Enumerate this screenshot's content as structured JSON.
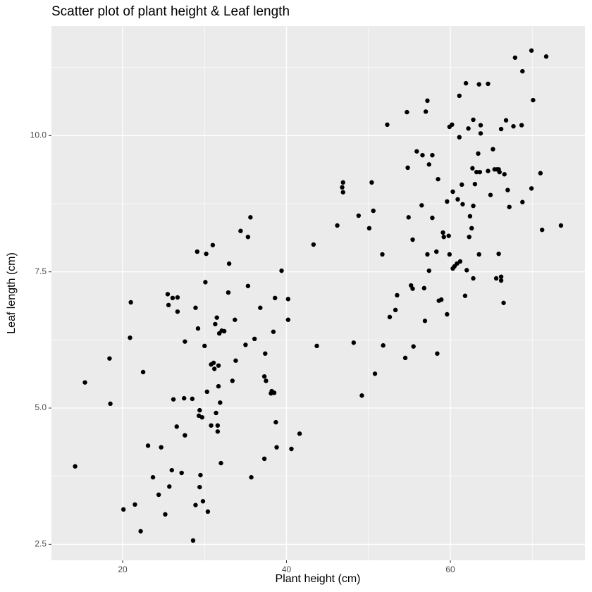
{
  "chart_data": {
    "type": "scatter",
    "title": "Scatter plot of plant height & Leaf length",
    "x_label": "Plant height (cm)",
    "y_label": "Leaf length (cm)",
    "xlim": [
      11.31,
      76.43
    ],
    "ylim": [
      2.207,
      12.009
    ],
    "xticks": [
      20,
      40,
      60
    ],
    "yticks": [
      2.5,
      {
        "value": 5,
        "label": "5.0"
      },
      7.5,
      {
        "value": 10,
        "label": "10.0"
      }
    ],
    "x_minor_grid": [
      10,
      30,
      50,
      70
    ],
    "y_minor_grid": [
      3.75,
      6.25,
      8.75,
      11.25
    ],
    "grid": true,
    "panel_color": "#ebebeb",
    "grid_color": "#ffffff",
    "color": "#000000",
    "x": [
      14.2,
      15.4,
      18.4,
      18.5,
      20.1,
      20.9,
      21.0,
      21.5,
      22.2,
      22.5,
      23.1,
      23.7,
      24.4,
      24.7,
      25.2,
      25.5,
      25.6,
      25.7,
      26.0,
      26.1,
      26.2,
      26.6,
      26.7,
      26.7,
      27.2,
      27.5,
      27.6,
      27.6,
      28.5,
      28.6,
      28.9,
      28.9,
      29.1,
      29.2,
      29.3,
      29.4,
      29.4,
      29.5,
      29.7,
      29.8,
      30.0,
      30.1,
      30.2,
      30.3,
      30.4,
      30.8,
      30.8,
      31.0,
      31.1,
      31.2,
      31.3,
      31.4,
      31.5,
      31.6,
      31.6,
      31.7,
      31.7,
      31.8,
      31.9,
      32.0,
      32.1,
      32.4,
      33.0,
      32.9,
      33.4,
      33.7,
      33.8,
      34.4,
      35.0,
      35.3,
      35.3,
      35.6,
      35.7,
      36.1,
      36.8,
      37.3,
      37.3,
      37.4,
      37.5,
      38.1,
      38.2,
      38.4,
      38.5,
      38.6,
      38.7,
      38.8,
      39.4,
      40.2,
      40.2,
      40.6,
      41.6,
      43.3,
      43.7,
      46.2,
      46.8,
      46.9,
      46.9,
      48.2,
      48.8,
      49.2,
      50.1,
      50.4,
      50.6,
      50.8,
      51.7,
      51.8,
      52.3,
      52.6,
      53.3,
      53.5,
      54.5,
      54.7,
      54.8,
      54.9,
      55.2,
      55.4,
      55.4,
      55.5,
      55.9,
      56.5,
      56.6,
      56.8,
      56.9,
      57.0,
      57.2,
      57.2,
      57.4,
      57.4,
      57.8,
      57.8,
      58.3,
      58.4,
      58.5,
      58.6,
      58.9,
      59.1,
      59.2,
      59.6,
      59.6,
      59.8,
      59.9,
      59.9,
      60.2,
      60.3,
      60.3,
      60.5,
      60.8,
      60.9,
      61.1,
      61.1,
      61.2,
      61.4,
      61.5,
      61.8,
      61.9,
      62.0,
      62.2,
      62.3,
      62.4,
      62.6,
      62.7,
      62.8,
      62.8,
      62.8,
      63.0,
      63.2,
      63.4,
      63.5,
      63.5,
      63.6,
      63.7,
      63.7,
      64.6,
      64.6,
      64.9,
      65.2,
      65.4,
      65.6,
      65.7,
      65.9,
      65.9,
      66.0,
      66.2,
      66.2,
      66.2,
      66.5,
      66.6,
      66.8,
      67.0,
      67.2,
      67.7,
      67.9,
      68.7,
      68.8,
      68.8,
      69.9,
      69.9,
      70.1,
      71.0,
      71.2,
      71.7,
      73.5
    ],
    "values": [
      3.93,
      5.47,
      5.91,
      5.08,
      3.14,
      6.29,
      6.94,
      3.23,
      2.74,
      5.66,
      4.31,
      3.73,
      3.41,
      4.28,
      3.05,
      7.09,
      6.89,
      3.56,
      3.86,
      7.02,
      5.16,
      4.66,
      6.77,
      7.03,
      3.81,
      5.18,
      4.5,
      6.22,
      5.17,
      2.57,
      6.84,
      3.22,
      7.87,
      6.46,
      4.86,
      3.55,
      4.96,
      3.77,
      4.83,
      3.29,
      6.14,
      7.31,
      7.83,
      5.3,
      3.1,
      5.8,
      4.68,
      7.99,
      5.83,
      5.72,
      6.54,
      4.91,
      6.66,
      4.57,
      4.68,
      5.4,
      5.78,
      6.37,
      5.1,
      3.99,
      6.42,
      6.41,
      7.65,
      7.12,
      5.5,
      6.62,
      5.87,
      8.25,
      6.16,
      7.24,
      8.14,
      8.5,
      3.73,
      6.27,
      6.84,
      4.07,
      5.58,
      6.0,
      5.5,
      5.27,
      5.31,
      6.4,
      5.28,
      7.02,
      4.74,
      4.28,
      7.52,
      7.0,
      6.62,
      4.25,
      4.53,
      8.0,
      6.14,
      8.35,
      9.05,
      9.14,
      8.96,
      6.2,
      8.53,
      5.23,
      8.3,
      9.14,
      8.62,
      5.63,
      7.82,
      6.15,
      10.2,
      6.67,
      6.8,
      7.07,
      5.92,
      10.43,
      9.41,
      8.5,
      7.25,
      7.19,
      8.09,
      6.13,
      9.71,
      8.72,
      9.64,
      7.2,
      6.6,
      10.44,
      10.64,
      7.82,
      9.47,
      7.52,
      8.49,
      9.64,
      7.87,
      6.0,
      9.2,
      6.97,
      6.99,
      8.22,
      8.14,
      6.72,
      8.79,
      8.16,
      7.82,
      10.16,
      10.2,
      8.97,
      7.56,
      7.6,
      7.65,
      8.83,
      9.97,
      10.73,
      7.69,
      9.1,
      8.74,
      7.06,
      10.96,
      7.53,
      10.13,
      8.14,
      8.52,
      8.3,
      9.4,
      8.71,
      10.29,
      7.38,
      9.11,
      9.33,
      9.67,
      7.82,
      10.94,
      9.33,
      10.04,
      10.19,
      9.35,
      10.95,
      8.91,
      9.75,
      9.38,
      7.38,
      9.38,
      9.38,
      7.83,
      9.33,
      10.12,
      7.41,
      7.34,
      6.93,
      9.29,
      10.28,
      9.0,
      8.69,
      10.17,
      11.43,
      10.19,
      11.18,
      8.78,
      9.03,
      11.56,
      10.65,
      9.31,
      8.27,
      11.45,
      8.35
    ]
  }
}
